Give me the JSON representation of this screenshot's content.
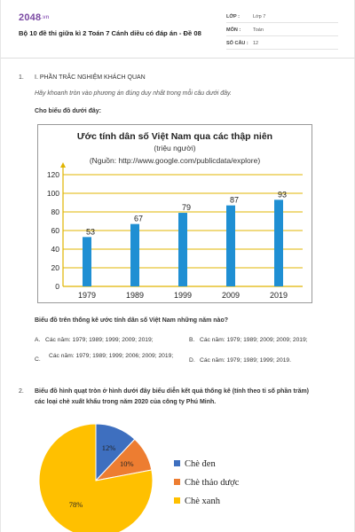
{
  "header": {
    "logo_main": "2048",
    "logo_suffix": ".vn",
    "title": "Bộ 10 đề thi giữa kì 2 Toán 7 Cánh diều có đáp án - Đề 08",
    "meta": [
      {
        "key": "LỚP :",
        "value": "Lớp 7"
      },
      {
        "key": "MÔN :",
        "value": "Toán"
      },
      {
        "key": "SỐ CÂU :",
        "value": "12"
      }
    ]
  },
  "section1": {
    "number": "1.",
    "title": "I. PHẦN TRẮC NGHIỆM KHÁCH QUAN",
    "instruction": "Hãy khoanh tròn vào phương án đúng duy nhất trong mỗi câu dưới đây.",
    "lead": "Cho biểu đồ dưới đây:",
    "question": "Biểu đồ trên thống kê ước tính dân số Việt Nam những năm nào?",
    "options": [
      {
        "letter": "A.",
        "text": "Các năm: 1979; 1989; 1999; 2009; 2019;"
      },
      {
        "letter": "B.",
        "text": "Các năm: 1979; 1989; 2009; 2009; 2019;"
      },
      {
        "letter": "C.",
        "text": "Các năm: 1979; 1989; 1999; 2006; 2009; 2019;"
      },
      {
        "letter": "D.",
        "text": "Các năm: 1979; 1989; 1999; 2019."
      }
    ]
  },
  "section2": {
    "number": "2.",
    "question_line1": "Biểu đồ hình quạt tròn ở hình dưới đây biểu diễn kết quả thống kê (tính theo tỉ số phần trăm)",
    "question_line2": "các loại chè xuất khẩu trong năm 2020 của công ty Phú Minh."
  },
  "chart_data": [
    {
      "type": "bar",
      "title": "Ước tính dân số Việt Nam qua các thập niên",
      "subtitle": "(triệu người)",
      "source": "(Nguồn: http://www.google.com/publicdata/explore)",
      "categories": [
        "1979",
        "1989",
        "1999",
        "2009",
        "2019"
      ],
      "values": [
        53,
        67,
        79,
        87,
        93
      ],
      "ylim": [
        0,
        120
      ],
      "yticks": [
        0,
        20,
        40,
        60,
        80,
        100,
        120
      ],
      "grid": true,
      "colors": {
        "bar": "#1f8fd3",
        "grid": "#e0b400",
        "axis": "#e0b400"
      }
    },
    {
      "type": "pie",
      "categories": [
        "Chè đen",
        "Chè thảo dược",
        "Chè xanh"
      ],
      "values": [
        12,
        10,
        78
      ],
      "labels": [
        "12%",
        "10%",
        "78%"
      ],
      "colors": [
        "#3e6fbf",
        "#ed7d31",
        "#ffc000"
      ],
      "legend_position": "right"
    }
  ]
}
